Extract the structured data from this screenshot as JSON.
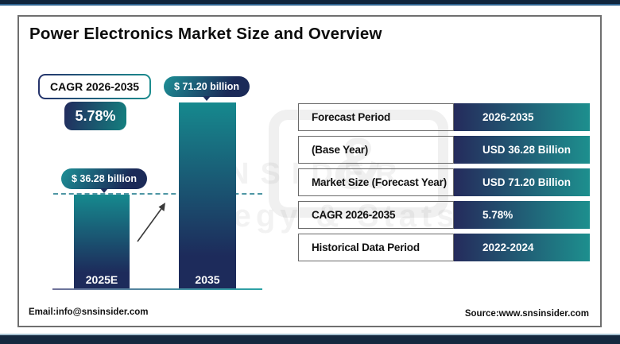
{
  "header": {
    "title": "Power Electronics Market Size and Overview"
  },
  "cagr_callout": {
    "label": "CAGR 2026-2035",
    "value": "5.78%"
  },
  "chart_data": {
    "type": "bar",
    "title": "Power Electronics Market Size and Overview",
    "categories": [
      "2025E",
      "2035"
    ],
    "values": [
      36.28,
      71.2
    ],
    "unit": "USD Billion",
    "data_labels": [
      "$ 36.28 billion",
      "$ 71.20 billion"
    ],
    "ylim": [
      0,
      71.2
    ],
    "grid": false,
    "legend": "none",
    "annotations": {
      "cagr_badge": "5.78%",
      "cagr_period": "CAGR 2026-2035",
      "reference_line": "dashed line at 36.28 level",
      "growth_arrow": "up-right arrow between bars"
    }
  },
  "info_table": {
    "rows": [
      {
        "label": "Forecast Period",
        "value": "2026-2035"
      },
      {
        "label": "(Base Year)",
        "value": "USD  36.28 Billion"
      },
      {
        "label": "Market Size (Forecast Year)",
        "value": "USD 71.20 Billion"
      },
      {
        "label": "CAGR 2026-2035",
        "value": "5.78%"
      },
      {
        "label": "Historical Data Period",
        "value": "2022-2024"
      }
    ]
  },
  "watermark": {
    "ampersand": "&",
    "insider": "NSIDER",
    "tagline": "ategy & Stats"
  },
  "footer": {
    "email": "Email:info@snsinsider.com",
    "source": "Source:www.snsinsider.com"
  },
  "colors": {
    "navy": "#222b5c",
    "teal": "#17888b",
    "top_bar": "#10253d",
    "top_bar_edge": "#2f6391",
    "bottom_bar": "#15293f",
    "bottom_bar_edge": "#a9c3d2",
    "frame_border": "#6f6f6f",
    "dash_line": "#4e96a4",
    "text": "#0d0d0d"
  }
}
